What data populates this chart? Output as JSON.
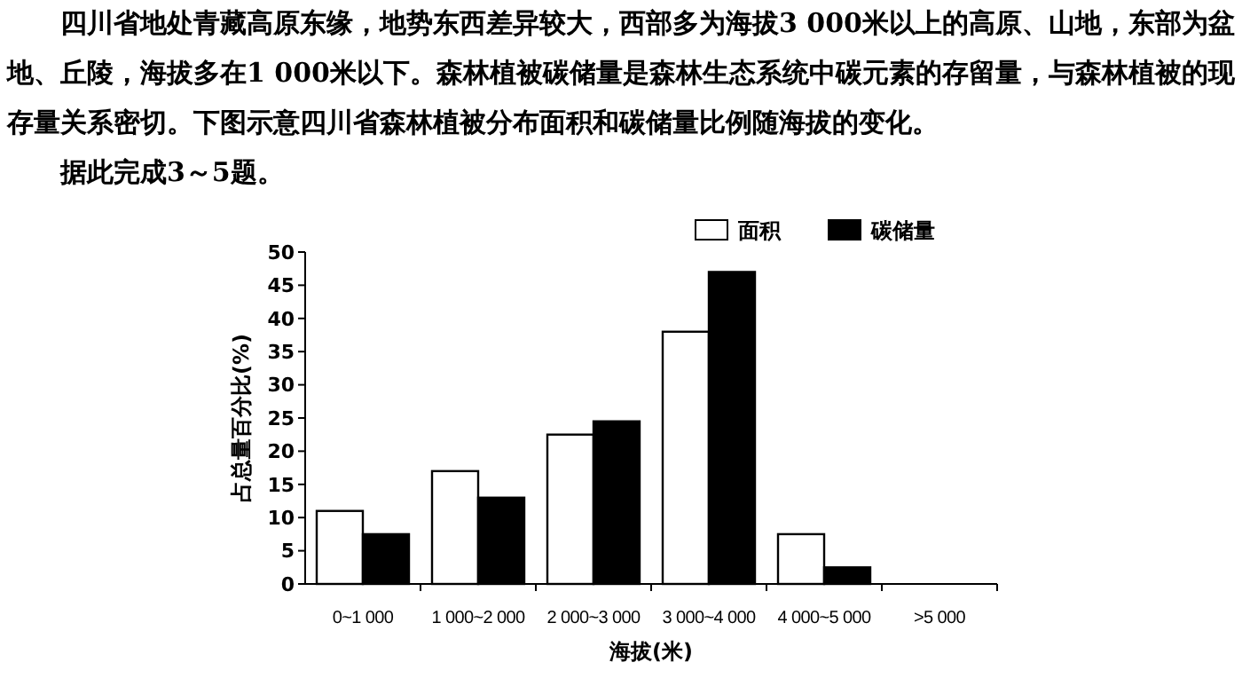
{
  "chart_data": {
    "type": "bar",
    "annotations": [
      "四川省地处青藏高原东缘，地势东西差异较大，西部多为海拔3 000米以上的高原、山地，东部为盆地、丘陵，海拔多在1 000米以下。森林植被碳储量是森林生态系统中碳元素的存留量，与森林植被的现存量关系密切。下图示意四川省森林植被分布面积和碳储量比例随海拔的变化。",
      "据此完成3～5题。"
    ],
    "categories": [
      "0~1 000",
      "1 000~2 000",
      "2 000~3 000",
      "3 000~4 000",
      "4 000~5 000",
      ">5 000"
    ],
    "series": [
      {
        "name": "面积",
        "color": "#ffffff",
        "values": [
          11,
          17,
          22.5,
          38,
          7.5,
          null
        ]
      },
      {
        "name": "碳储量",
        "color": "#000000",
        "values": [
          7.5,
          13,
          24.5,
          47,
          2.5,
          null
        ]
      }
    ],
    "xlabel": "海拔(米)",
    "ylabel": "占总量百分比(%)",
    "ylim": [
      0,
      50
    ],
    "yticks": [
      0,
      5,
      10,
      15,
      20,
      25,
      30,
      35,
      40,
      45,
      50
    ],
    "legend": "top right",
    "grid": false
  }
}
